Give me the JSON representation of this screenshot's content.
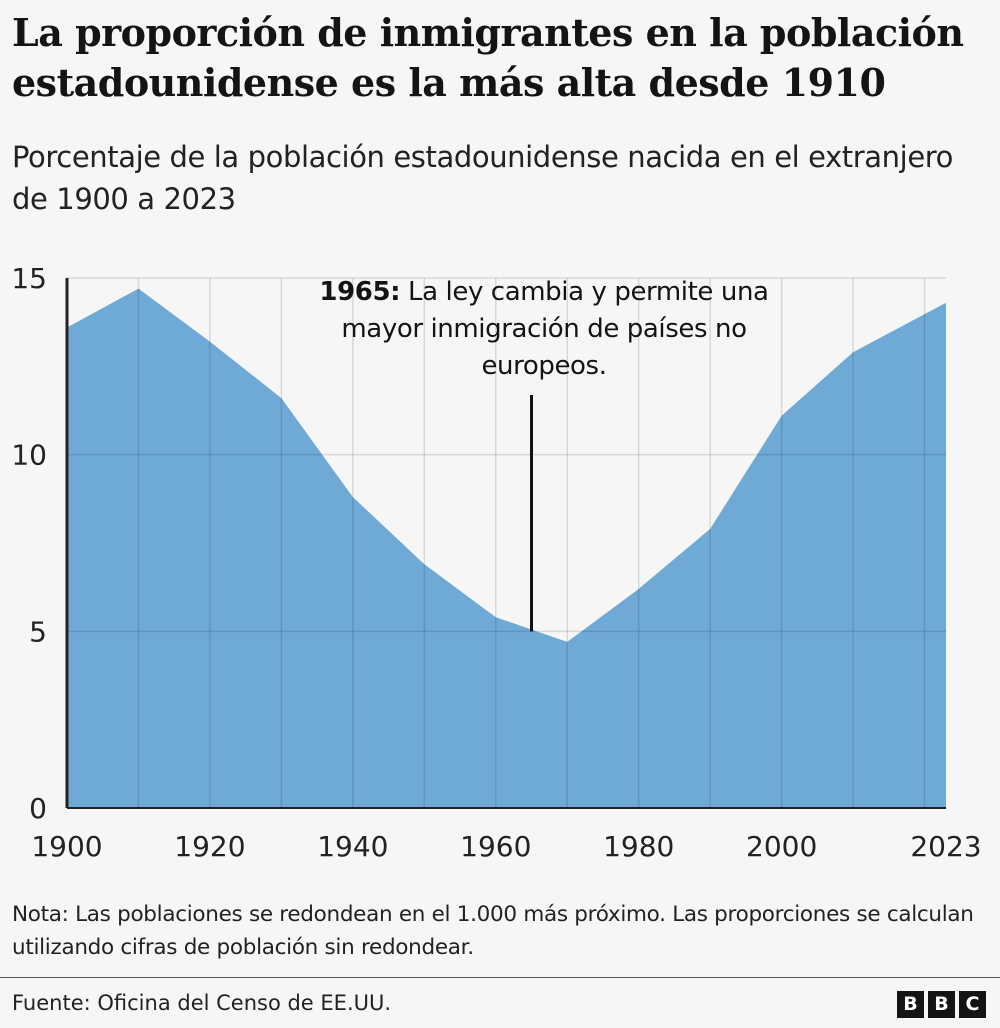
{
  "title": "La proporción de inmigrantes en la población estadounidense es la más alta desde 1910",
  "subtitle": "Porcentaje de la población estadounidense nacida en el extranjero de 1900 a 2023",
  "note": "Nota: Las poblaciones se redondean en el 1.000 más próximo. Las proporciones se calculan utilizando cifras de población sin redondear.",
  "source": "Fuente: Oficina del Censo de EE.UU.",
  "logo": [
    "B",
    "B",
    "C"
  ],
  "chart_data": {
    "type": "area",
    "x": [
      1900,
      1910,
      1920,
      1930,
      1940,
      1950,
      1960,
      1970,
      1980,
      1990,
      2000,
      2010,
      2023
    ],
    "values": [
      13.6,
      14.7,
      13.2,
      11.6,
      8.8,
      6.9,
      5.4,
      4.7,
      6.2,
      7.9,
      11.1,
      12.9,
      14.3
    ],
    "xlim": [
      1900,
      2023
    ],
    "ylim": [
      0,
      15
    ],
    "xticks": [
      "1900",
      "1920",
      "1940",
      "1960",
      "1980",
      "2000",
      "2023"
    ],
    "yticks": [
      "0",
      "5",
      "10",
      "15"
    ],
    "grid": true,
    "color": "#6fa9d6",
    "annotation": {
      "x": 1965,
      "y": 5.0,
      "bold": "1965:",
      "text_line1": " La ley cambia y permite una",
      "text_line2": "mayor inmigración de países no",
      "text_line3": "europeos."
    }
  }
}
